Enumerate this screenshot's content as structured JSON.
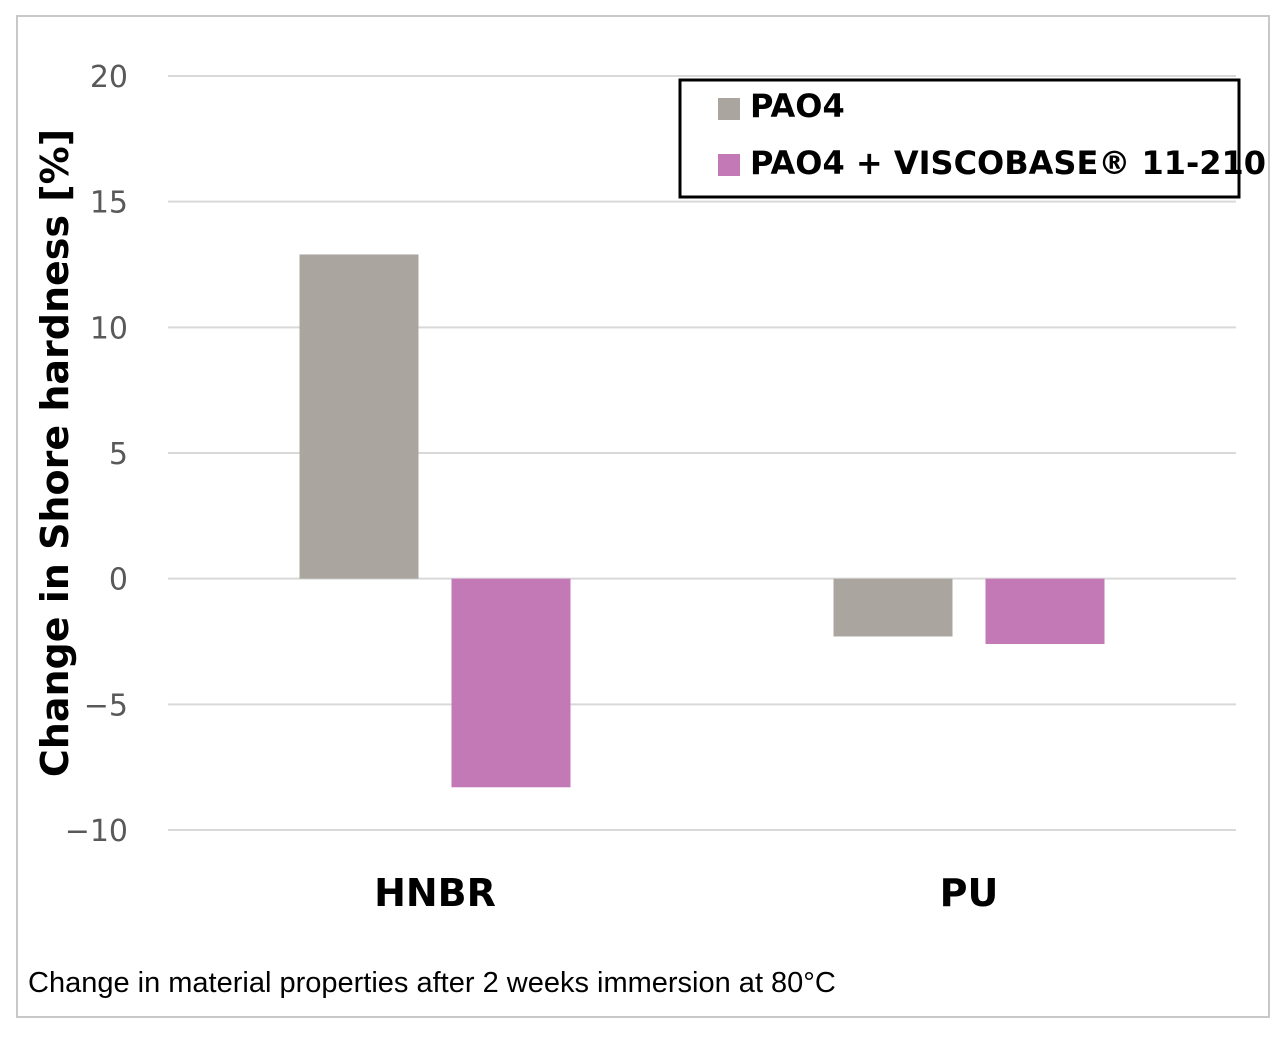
{
  "chart_data": {
    "type": "bar",
    "categories": [
      "HNBR",
      "PU"
    ],
    "series": [
      {
        "name": "PAO4",
        "values": [
          12.9,
          -2.3
        ],
        "color": "#aba5a0"
      },
      {
        "name": "PAO4 + VISCOBASE® 11-210",
        "values": [
          -8.3,
          -2.6
        ],
        "color": "#c279b6"
      }
    ],
    "ylabel": "Change in Shore hardness [%]",
    "xlabel": "",
    "ylim": [
      -10,
      20
    ],
    "yticks": [
      20,
      15,
      10,
      5,
      0,
      -5,
      -10
    ],
    "ytick_labels": [
      "20",
      "15",
      "10",
      "5",
      "0",
      "−5",
      "−10"
    ],
    "grid": true,
    "legend_position": "top-right",
    "caption": "Change in material properties after 2 weeks immersion at 80°C"
  }
}
